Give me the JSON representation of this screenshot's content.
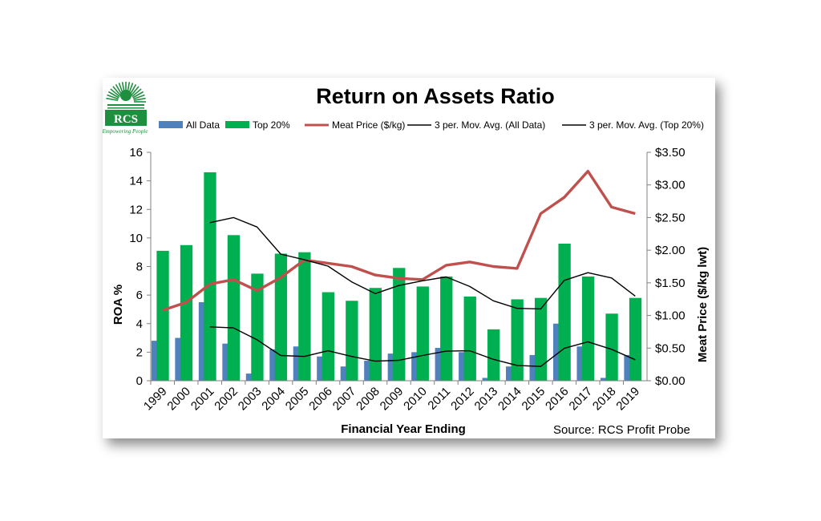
{
  "logo": {
    "name": "RCS",
    "tagline": "Empowering People"
  },
  "source_text": "Source: RCS Profit Probe",
  "chart_data": {
    "type": "bar",
    "title": "Return on Assets Ratio",
    "xlabel": "Financial Year Ending",
    "ylabel": "ROA %",
    "y2label": "Meat Price ($/kg lwt)",
    "categories": [
      "1999",
      "2000",
      "2001",
      "2002",
      "2003",
      "2004",
      "2005",
      "2006",
      "2007",
      "2008",
      "2009",
      "2010",
      "2011",
      "2012",
      "2013",
      "2014",
      "2015",
      "2016",
      "2017",
      "2018",
      "2019"
    ],
    "ylim": [
      0,
      16
    ],
    "yticks": [
      "0",
      "2",
      "4",
      "6",
      "8",
      "10",
      "12",
      "14",
      "16"
    ],
    "y2lim": [
      0,
      3.5
    ],
    "y2ticks": [
      "$0.00",
      "$0.50",
      "$1.00",
      "$1.50",
      "$2.00",
      "$2.50",
      "$3.00",
      "$3.50"
    ],
    "legend_position": "top",
    "grid": false,
    "series": [
      {
        "name": "All Data",
        "kind": "bar",
        "axis": "left",
        "color": "#4f81bd",
        "values": [
          2.8,
          3.0,
          5.5,
          2.6,
          0.5,
          2.2,
          2.4,
          1.7,
          1.0,
          1.4,
          1.9,
          2.0,
          2.3,
          2.0,
          0.2,
          1.0,
          1.8,
          4.0,
          2.4,
          0.2,
          1.8
        ]
      },
      {
        "name": "Top 20%",
        "kind": "bar",
        "axis": "left",
        "color": "#00b050",
        "values": [
          9.1,
          9.5,
          14.6,
          10.2,
          7.5,
          8.9,
          9.0,
          6.2,
          5.6,
          6.5,
          7.9,
          6.6,
          7.3,
          5.9,
          3.6,
          5.7,
          5.8,
          9.6,
          7.3,
          4.7,
          5.8
        ]
      },
      {
        "name": "Meat Price ($/kg)",
        "kind": "line",
        "axis": "right",
        "color": "#c0504d",
        "values": [
          1.08,
          1.2,
          1.48,
          1.55,
          1.38,
          1.58,
          1.85,
          1.8,
          1.75,
          1.62,
          1.57,
          1.55,
          1.77,
          1.82,
          1.75,
          1.72,
          2.56,
          2.81,
          3.21,
          2.66,
          2.56
        ]
      },
      {
        "name": "3 per. Mov. Avg. (All Data)",
        "kind": "line",
        "axis": "left",
        "color": "#000000",
        "values": [
          null,
          null,
          3.77,
          3.7,
          2.87,
          1.77,
          1.7,
          2.1,
          1.7,
          1.37,
          1.43,
          1.77,
          2.07,
          2.1,
          1.5,
          1.07,
          1.0,
          2.27,
          2.73,
          2.2,
          1.47
        ]
      },
      {
        "name": "3 per. Mov. Avg. (Top 20%)",
        "kind": "line",
        "axis": "left",
        "color": "#000000",
        "values": [
          null,
          null,
          11.07,
          11.43,
          10.77,
          8.87,
          8.47,
          8.03,
          6.93,
          6.1,
          6.67,
          7.0,
          7.27,
          6.6,
          5.6,
          5.07,
          5.03,
          7.03,
          7.57,
          7.2,
          5.93
        ]
      }
    ]
  }
}
